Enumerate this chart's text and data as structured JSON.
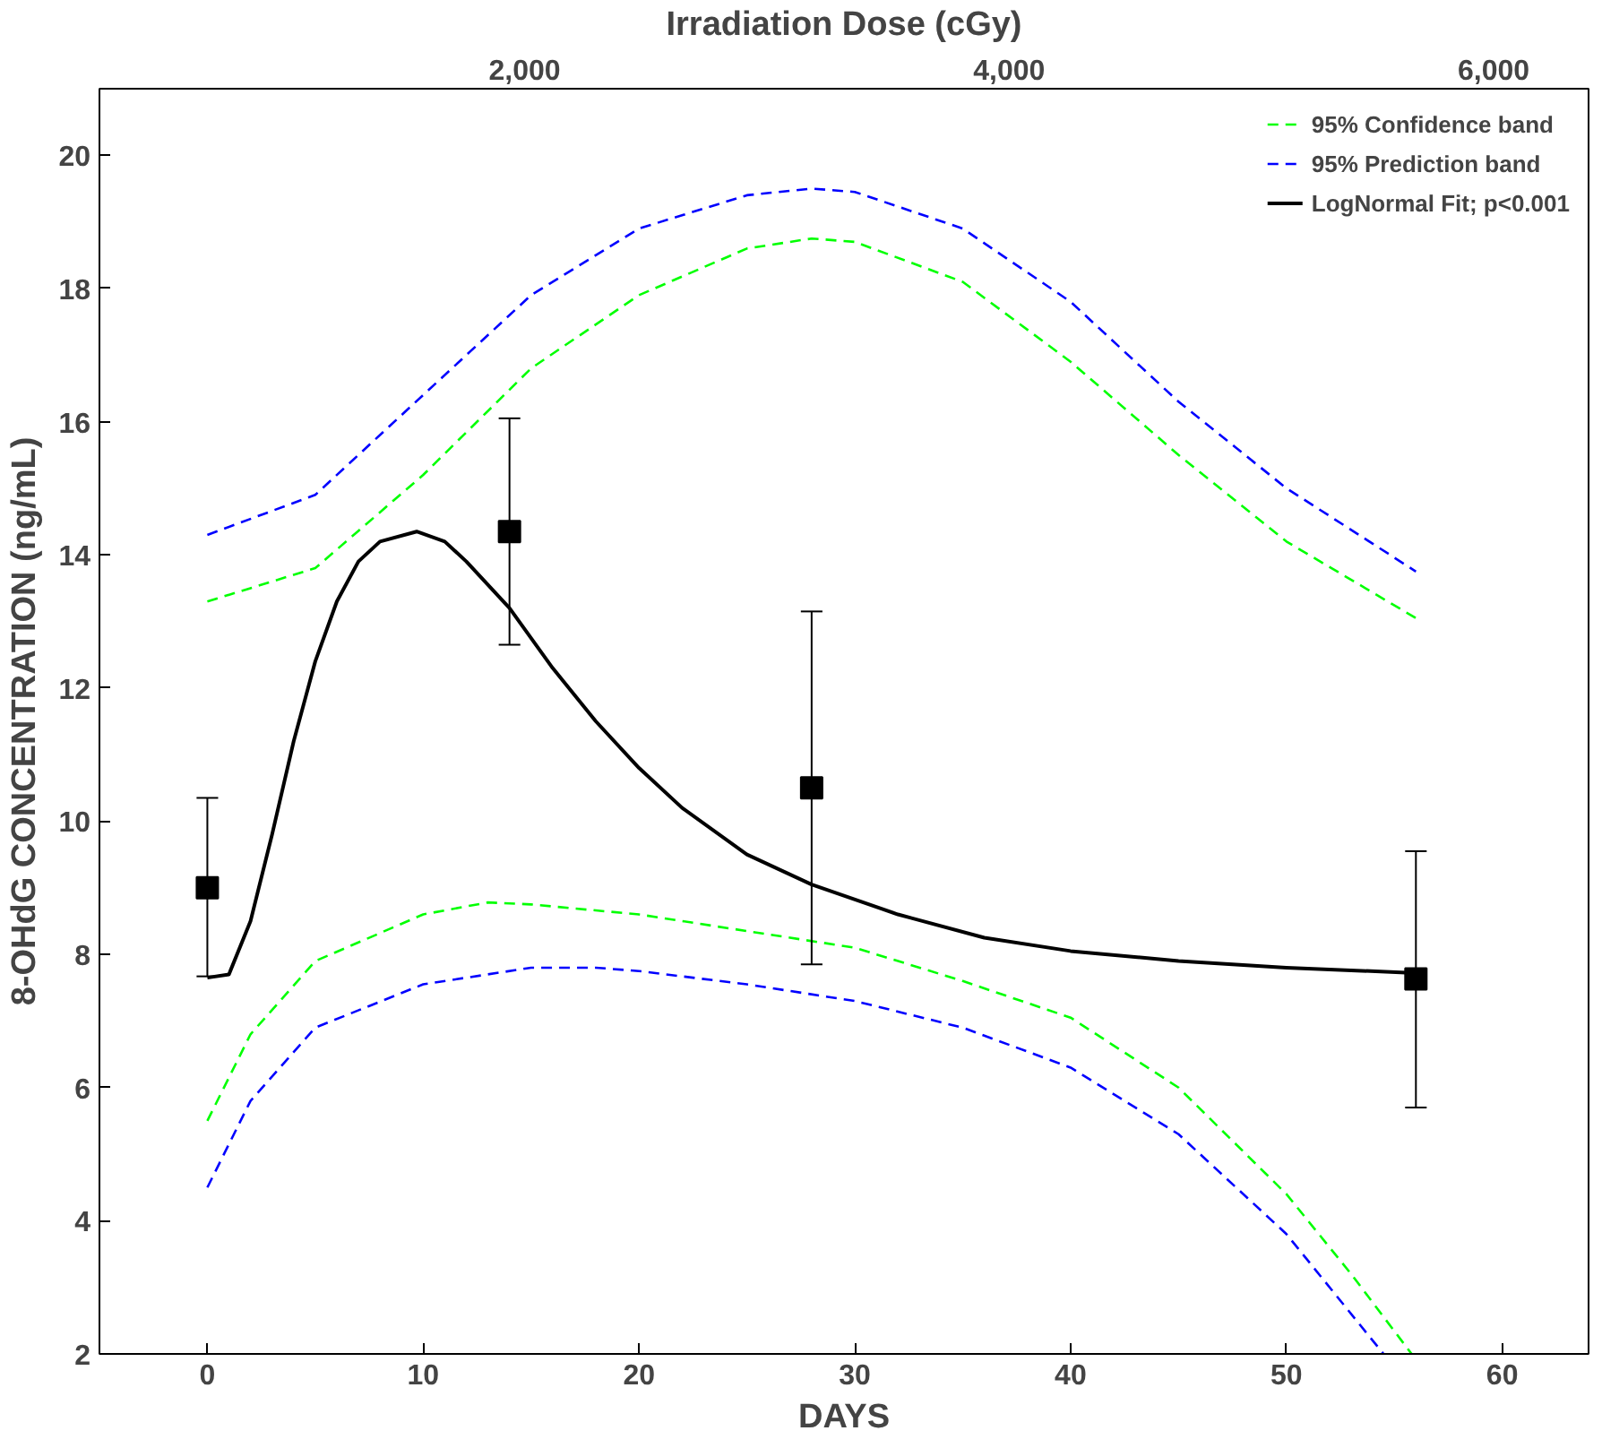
{
  "chart_data": {
    "type": "line",
    "xlabel": "DAYS",
    "ylabel": "8-OHdG CONCENTRATION (ng/mL)",
    "x2label": "Irradiation Dose (cGy)",
    "xlim": [
      -5,
      64
    ],
    "xticks": [
      0,
      10,
      20,
      30,
      40,
      50,
      60
    ],
    "x2lim": [
      245,
      6392
    ],
    "x2ticks": [
      {
        "value": 2000,
        "label": "2,000"
      },
      {
        "value": 4000,
        "label": "4,000"
      },
      {
        "value": 6000,
        "label": "6,000"
      }
    ],
    "ylim": [
      2,
      21
    ],
    "yticks": [
      2,
      4,
      6,
      8,
      10,
      12,
      14,
      16,
      18,
      20
    ],
    "grid": false,
    "legend": "top right",
    "series": [
      {
        "name": "95% Confidence band",
        "color": "#00ff00",
        "line_style": "dashed",
        "x": [
          0,
          5,
          10,
          15,
          20,
          25,
          28,
          30,
          35,
          40,
          45,
          50,
          56
        ],
        "values": [
          13.3,
          13.8,
          15.2,
          16.8,
          17.9,
          18.6,
          18.75,
          18.7,
          18.1,
          16.9,
          15.5,
          14.2,
          13.05
        ]
      },
      {
        "color": "#00ff00",
        "line_style": "dashed",
        "x": [
          0,
          2,
          5,
          10,
          13,
          15,
          20,
          25,
          30,
          35,
          40,
          45,
          50,
          53,
          55.8
        ],
        "values": [
          5.5,
          6.8,
          7.9,
          8.6,
          8.78,
          8.75,
          8.6,
          8.35,
          8.1,
          7.6,
          7.05,
          6.0,
          4.4,
          3.2,
          2.0
        ]
      },
      {
        "name": "95% Prediction band",
        "color": "#0000ff",
        "line_style": "dashed",
        "x": [
          0,
          5,
          10,
          15,
          20,
          25,
          28,
          30,
          35,
          40,
          45,
          50,
          56
        ],
        "values": [
          14.3,
          14.9,
          16.4,
          17.9,
          18.9,
          19.4,
          19.5,
          19.45,
          18.9,
          17.8,
          16.3,
          15.0,
          13.75
        ]
      },
      {
        "color": "#0000ff",
        "line_style": "dashed",
        "x": [
          0,
          2,
          5,
          10,
          15,
          18,
          20,
          25,
          30,
          35,
          40,
          45,
          50,
          54.5
        ],
        "values": [
          4.5,
          5.8,
          6.9,
          7.55,
          7.8,
          7.8,
          7.75,
          7.55,
          7.3,
          6.9,
          6.3,
          5.3,
          3.8,
          2.0
        ]
      },
      {
        "name": "LogNormal Fit; p<0.001",
        "color": "#000000",
        "line_style": "solid",
        "x": [
          0,
          1,
          2,
          3,
          4,
          5,
          6,
          7,
          8,
          9.7,
          11,
          12,
          14,
          16,
          18,
          20,
          22,
          25,
          28,
          32,
          36,
          40,
          45,
          50,
          56
        ],
        "values": [
          7.65,
          7.7,
          8.5,
          9.8,
          11.2,
          12.4,
          13.3,
          13.9,
          14.2,
          14.35,
          14.2,
          13.9,
          13.2,
          12.3,
          11.5,
          10.8,
          10.2,
          9.5,
          9.05,
          8.6,
          8.25,
          8.05,
          7.9,
          7.8,
          7.72
        ]
      },
      {
        "type": "scatter",
        "marker": "square",
        "color": "#000000",
        "x": [
          0,
          14,
          28,
          56
        ],
        "values": [
          9.0,
          14.35,
          10.5,
          7.63
        ],
        "errors": [
          [
            7.67,
            10.35
          ],
          [
            12.65,
            16.05
          ],
          [
            7.85,
            13.15
          ],
          [
            5.7,
            9.55
          ]
        ]
      }
    ]
  }
}
